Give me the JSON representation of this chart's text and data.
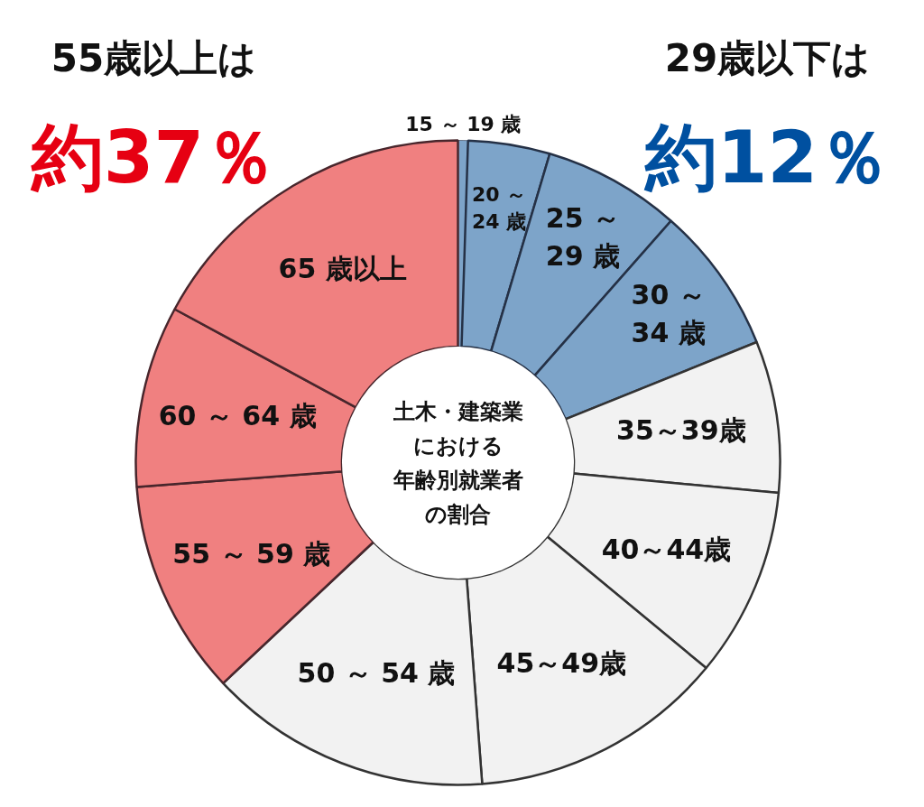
{
  "chart_data": {
    "type": "donut",
    "categories": [
      "15 ～ 19 歳",
      "20 ～ 24 歳",
      "25 ～ 29 歳",
      "30 ～ 34 歳",
      "35～39歳",
      "40～44歳",
      "45～49歳",
      "50 ～ 54 歳",
      "55 ～ 59 歳",
      "60 ～ 64 歳",
      "65 歳以上"
    ],
    "values": [
      0.5,
      4.1,
      6.9,
      7.4,
      7.6,
      9.5,
      12.8,
      14.2,
      10.8,
      9.1,
      17.1
    ],
    "colors": [
      "#7da4c9",
      "#7da4c9",
      "#7da4c9",
      "#7da4c9",
      "#f2f2f2",
      "#f2f2f2",
      "#f2f2f2",
      "#f2f2f2",
      "#f08080",
      "#f08080",
      "#f08080"
    ],
    "annotations": [
      "55歳以上は",
      "約37％",
      "29歳以下は",
      "約12％",
      "土木・建築業",
      "における",
      "年齢別就業者",
      "の割合"
    ]
  }
}
